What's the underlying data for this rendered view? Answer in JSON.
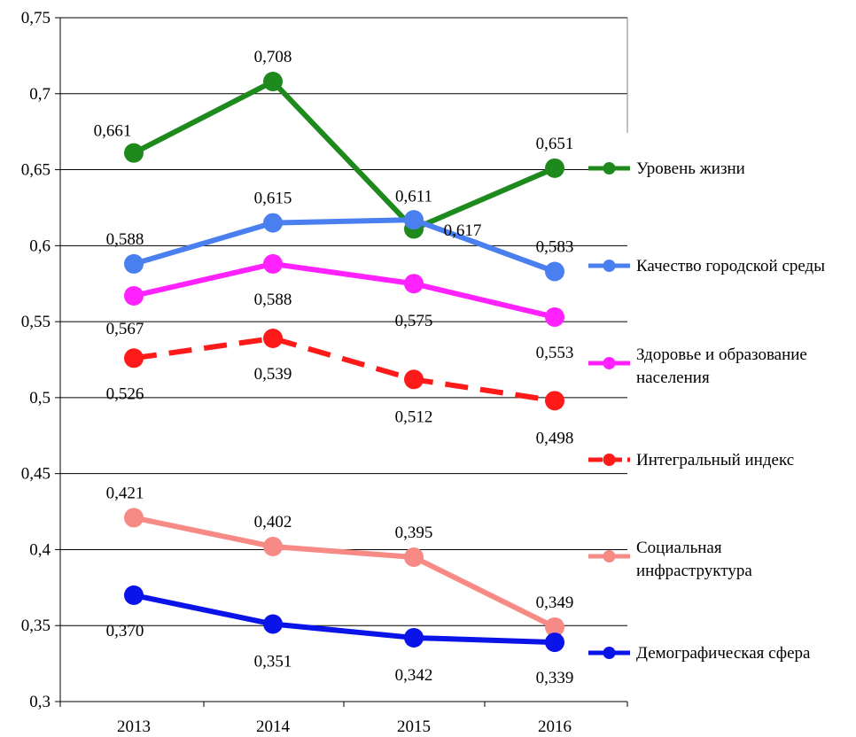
{
  "chart_data": {
    "type": "line",
    "categories": [
      "2013",
      "2014",
      "2015",
      "2016"
    ],
    "ylim": [
      0.3,
      0.75
    ],
    "yticks": [
      "0,3",
      "0,35",
      "0,4",
      "0,45",
      "0,5",
      "0,55",
      "0,6",
      "0,65",
      "0,7",
      "0,75"
    ],
    "grid": true,
    "legend_position": "right",
    "series": [
      {
        "name": "Уровень жизни",
        "color": "#1e8a1e",
        "dashed": false,
        "values": [
          0.661,
          0.708,
          0.611,
          0.651
        ],
        "labels": [
          "0,661",
          "0,708",
          "0,611",
          "0,651"
        ]
      },
      {
        "name": "Качество городской среды",
        "color": "#4a7fef",
        "dashed": false,
        "values": [
          0.588,
          0.615,
          0.617,
          0.583
        ],
        "labels": [
          "0,588",
          "0,615",
          "0,617",
          "0,583"
        ]
      },
      {
        "name": "Здоровье и образование населения",
        "color": "#ff22ff",
        "dashed": false,
        "values": [
          0.567,
          0.588,
          0.575,
          0.553
        ],
        "labels": [
          "0,567",
          "0,588",
          "0,575",
          "0,553"
        ]
      },
      {
        "name": "Интегральный индекс",
        "color": "#ff1a1a",
        "dashed": true,
        "values": [
          0.526,
          0.539,
          0.512,
          0.498
        ],
        "labels": [
          "0,526",
          "0,539",
          "0,512",
          "0,498"
        ]
      },
      {
        "name": "Социальная инфраструктура",
        "color": "#f88a86",
        "dashed": false,
        "values": [
          0.421,
          0.402,
          0.395,
          0.349
        ],
        "labels": [
          "0,421",
          "0,402",
          "0,395",
          "0,349"
        ]
      },
      {
        "name": "Демографическая сфера",
        "color": "#0a14e8",
        "dashed": false,
        "values": [
          0.37,
          0.351,
          0.342,
          0.339
        ],
        "labels": [
          "0,370",
          "0,351",
          "0,342",
          "0,339"
        ]
      }
    ],
    "legend": [
      [
        "Уровень жизни"
      ],
      [
        "Качество городской среды"
      ],
      [
        "Здоровье и образование",
        "населения"
      ],
      [
        "Интегральный индекс"
      ],
      [
        "Социальная",
        "инфраструктура"
      ],
      [
        "Демографическая сфера"
      ]
    ]
  }
}
